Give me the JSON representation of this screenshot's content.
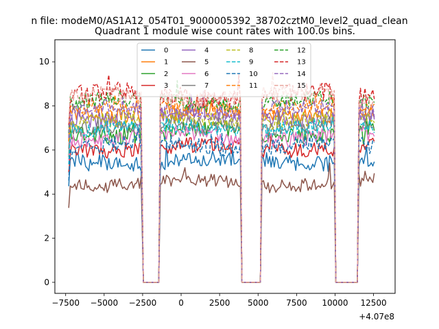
{
  "figure": {
    "suptitle": "n file: modeM0/AS1A12_054T01_9000005392_38702cztM0_level2_quad_clean",
    "title": "Quadrant 1 module wise count rates with 100.0s bins."
  },
  "chart_data": {
    "type": "line",
    "title": "Quadrant 1 module wise count rates with 100.0s bins.",
    "xlabel": "",
    "ylabel": "",
    "x_offset_label": "+4.07e8",
    "xlim": [
      -8200,
      13900
    ],
    "ylim": [
      -0.5,
      11.0
    ],
    "xticks": [
      -7500,
      -5000,
      -2500,
      0,
      2500,
      5000,
      7500,
      10000,
      12500
    ],
    "xtick_labels": [
      "−7500",
      "−5000",
      "−2500",
      "0",
      "2500",
      "5000",
      "7500",
      "10000",
      "12500"
    ],
    "yticks": [
      0,
      2,
      4,
      6,
      8,
      10
    ],
    "ytick_labels": [
      "0",
      "2",
      "4",
      "6",
      "8",
      "10"
    ],
    "grid": false,
    "legend": {
      "placement": "top-center",
      "columns": 4
    },
    "segments": [
      [
        -7300,
        -2550
      ],
      [
        -2450,
        -1450
      ],
      [
        -1350,
        3850
      ],
      [
        3950,
        5150
      ],
      [
        5250,
        9950
      ],
      [
        10050,
        11450
      ],
      [
        11550,
        12600
      ]
    ],
    "gap_segments": [
      1,
      3,
      5
    ],
    "series": [
      {
        "name": "0",
        "color": "#1f77b4",
        "dash": "solid",
        "level": 5.5,
        "noise": 0.35
      },
      {
        "name": "1",
        "color": "#ff7f0e",
        "dash": "solid",
        "level": 7.7,
        "noise": 0.35
      },
      {
        "name": "2",
        "color": "#2ca02c",
        "dash": "solid",
        "level": 6.8,
        "noise": 0.4
      },
      {
        "name": "3",
        "color": "#d62728",
        "dash": "solid",
        "level": 6.1,
        "noise": 0.35
      },
      {
        "name": "4",
        "color": "#9467bd",
        "dash": "solid",
        "level": 7.5,
        "noise": 0.35
      },
      {
        "name": "5",
        "color": "#8c564b",
        "dash": "solid",
        "level": 4.5,
        "noise": 0.3
      },
      {
        "name": "6",
        "color": "#e377c2",
        "dash": "solid",
        "level": 6.6,
        "noise": 0.35
      },
      {
        "name": "7",
        "color": "#7f7f7f",
        "dash": "solid",
        "level": 7.1,
        "noise": 0.35
      },
      {
        "name": "8",
        "color": "#bcbd22",
        "dash": "dashed",
        "level": 7.4,
        "noise": 0.35
      },
      {
        "name": "9",
        "color": "#17becf",
        "dash": "dashed",
        "level": 7.0,
        "noise": 0.35
      },
      {
        "name": "10",
        "color": "#1f77b4",
        "dash": "dashed",
        "level": 6.2,
        "noise": 0.35
      },
      {
        "name": "11",
        "color": "#ff7f0e",
        "dash": "dashed",
        "level": 7.9,
        "noise": 0.35
      },
      {
        "name": "12",
        "color": "#2ca02c",
        "dash": "dashed",
        "level": 8.2,
        "noise": 0.35
      },
      {
        "name": "13",
        "color": "#d62728",
        "dash": "dashed",
        "level": 8.5,
        "noise": 0.45
      },
      {
        "name": "14",
        "color": "#9467bd",
        "dash": "dashed",
        "level": 7.8,
        "noise": 0.35
      },
      {
        "name": "15",
        "color": "#e8a39b",
        "dash": "dashed",
        "level": 8.4,
        "noise": 0.4
      }
    ]
  }
}
